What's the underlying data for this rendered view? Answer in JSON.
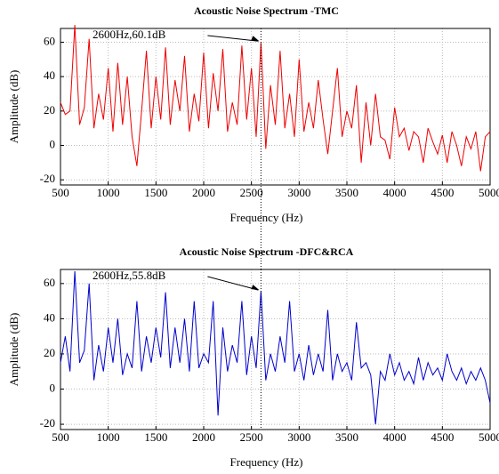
{
  "chart_data": [
    {
      "type": "line",
      "title": "Acoustic Noise Spectrum -TMC",
      "x_label": "Frequency (Hz)",
      "y_label": "Amplitude (dB)",
      "color": "#ee0000",
      "grid": true,
      "xlim": [
        500,
        5000
      ],
      "ylim": [
        -23,
        68
      ],
      "xticks": [
        500,
        1000,
        1500,
        2000,
        2500,
        3000,
        3500,
        4000,
        4500,
        5000
      ],
      "yticks": [
        -20,
        0,
        20,
        40,
        60
      ],
      "annotation": {
        "text": "2600Hz,60.1dB",
        "x": 2600,
        "y": 60.1
      },
      "x": [
        500,
        550,
        600,
        650,
        700,
        750,
        800,
        850,
        900,
        950,
        1000,
        1050,
        1100,
        1150,
        1200,
        1250,
        1300,
        1350,
        1400,
        1450,
        1500,
        1550,
        1600,
        1650,
        1700,
        1750,
        1800,
        1850,
        1900,
        1950,
        2000,
        2050,
        2100,
        2150,
        2200,
        2250,
        2300,
        2350,
        2400,
        2450,
        2500,
        2550,
        2600,
        2650,
        2700,
        2750,
        2800,
        2850,
        2900,
        2950,
        3000,
        3050,
        3100,
        3150,
        3200,
        3250,
        3300,
        3350,
        3400,
        3450,
        3500,
        3550,
        3600,
        3650,
        3700,
        3750,
        3800,
        3850,
        3900,
        3950,
        4000,
        4050,
        4100,
        4150,
        4200,
        4250,
        4300,
        4350,
        4400,
        4450,
        4500,
        4550,
        4600,
        4650,
        4700,
        4750,
        4800,
        4850,
        4900,
        4950,
        5000
      ],
      "values": [
        25,
        18,
        20,
        70,
        12,
        22,
        62,
        10,
        30,
        15,
        45,
        8,
        48,
        12,
        40,
        5,
        -12,
        20,
        55,
        10,
        40,
        15,
        57,
        12,
        38,
        20,
        52,
        8,
        30,
        14,
        54,
        10,
        42,
        20,
        56,
        8,
        25,
        12,
        58,
        15,
        45,
        5,
        60.1,
        -2,
        35,
        12,
        55,
        10,
        30,
        5,
        50,
        8,
        25,
        10,
        38,
        15,
        -5,
        20,
        45,
        5,
        20,
        10,
        35,
        -10,
        25,
        0,
        30,
        5,
        3,
        -8,
        22,
        5,
        10,
        -3,
        8,
        5,
        -10,
        10,
        2,
        -5,
        6,
        -10,
        8,
        0,
        -12,
        5,
        -2,
        8,
        -15,
        5,
        8
      ]
    },
    {
      "type": "line",
      "title": "Acoustic Noise Spectrum -DFC&RCA",
      "x_label": "Frequency (Hz)",
      "y_label": "Amplitude (dB)",
      "color": "#0000cc",
      "grid": true,
      "xlim": [
        500,
        5000
      ],
      "ylim": [
        -23,
        68
      ],
      "xticks": [
        500,
        1000,
        1500,
        2000,
        2500,
        3000,
        3500,
        4000,
        4500,
        5000
      ],
      "yticks": [
        -20,
        0,
        20,
        40,
        60
      ],
      "annotation": {
        "text": "2600Hz,55.8dB",
        "x": 2600,
        "y": 55.8
      },
      "x": [
        500,
        550,
        600,
        650,
        700,
        750,
        800,
        850,
        900,
        950,
        1000,
        1050,
        1100,
        1150,
        1200,
        1250,
        1300,
        1350,
        1400,
        1450,
        1500,
        1550,
        1600,
        1650,
        1700,
        1750,
        1800,
        1850,
        1900,
        1950,
        2000,
        2050,
        2100,
        2150,
        2200,
        2250,
        2300,
        2350,
        2400,
        2450,
        2500,
        2550,
        2600,
        2650,
        2700,
        2750,
        2800,
        2850,
        2900,
        2950,
        3000,
        3050,
        3100,
        3150,
        3200,
        3250,
        3300,
        3350,
        3400,
        3450,
        3500,
        3550,
        3600,
        3650,
        3700,
        3750,
        3800,
        3850,
        3900,
        3950,
        4000,
        4050,
        4100,
        4150,
        4200,
        4250,
        4300,
        4350,
        4400,
        4450,
        4500,
        4550,
        4600,
        4650,
        4700,
        4750,
        4800,
        4850,
        4900,
        4950,
        5000
      ],
      "values": [
        15,
        30,
        10,
        67,
        15,
        22,
        60,
        5,
        25,
        10,
        35,
        15,
        40,
        8,
        20,
        12,
        50,
        10,
        30,
        15,
        35,
        18,
        55,
        12,
        35,
        15,
        40,
        10,
        50,
        12,
        20,
        15,
        50,
        -15,
        35,
        10,
        25,
        15,
        50,
        8,
        30,
        12,
        55.8,
        5,
        20,
        10,
        30,
        15,
        50,
        10,
        20,
        5,
        25,
        8,
        20,
        10,
        45,
        5,
        20,
        10,
        15,
        5,
        38,
        12,
        15,
        8,
        -20,
        10,
        5,
        20,
        8,
        15,
        5,
        10,
        3,
        18,
        5,
        15,
        8,
        12,
        5,
        20,
        10,
        5,
        12,
        3,
        10,
        5,
        12,
        5,
        -8
      ]
    }
  ]
}
